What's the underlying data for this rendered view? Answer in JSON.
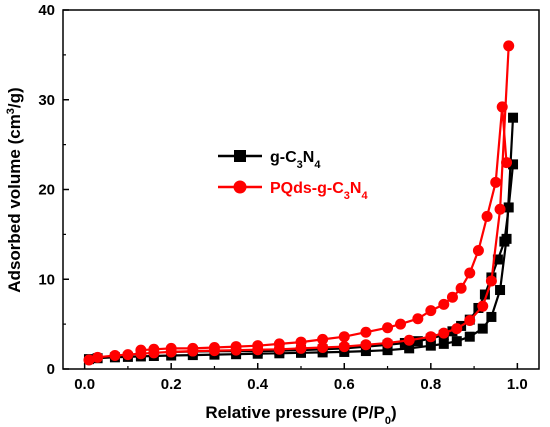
{
  "chart_data": {
    "type": "line",
    "title": "",
    "xlabel": "Relative pressure (P/P0)",
    "ylabel": "Adsorbed volume (cm3/g)",
    "xlim": [
      -0.05,
      1.05
    ],
    "ylim": [
      0,
      40
    ],
    "x_ticks": [
      "0.0",
      "0.2",
      "0.4",
      "0.6",
      "0.8",
      "1.0"
    ],
    "y_ticks": [
      "0",
      "10",
      "20",
      "30",
      "40"
    ],
    "x_tick_values": [
      0,
      0.2,
      0.4,
      0.6,
      0.8,
      1.0
    ],
    "y_tick_values": [
      0,
      10,
      20,
      30,
      40
    ],
    "grid": false,
    "legend_position": "center-left",
    "series": [
      {
        "name": "g-C3N4",
        "color": "#000000",
        "marker": "square",
        "adsorption": {
          "x": [
            0.01,
            0.03,
            0.07,
            0.1,
            0.13,
            0.16,
            0.2,
            0.25,
            0.3,
            0.35,
            0.4,
            0.45,
            0.5,
            0.55,
            0.6,
            0.65,
            0.7,
            0.75,
            0.8,
            0.83,
            0.86,
            0.89,
            0.92,
            0.94,
            0.96,
            0.975,
            0.99
          ],
          "y": [
            1.1,
            1.2,
            1.3,
            1.35,
            1.4,
            1.45,
            1.5,
            1.55,
            1.6,
            1.65,
            1.7,
            1.75,
            1.8,
            1.85,
            1.9,
            2.0,
            2.1,
            2.3,
            2.6,
            2.8,
            3.1,
            3.6,
            4.5,
            5.8,
            8.8,
            14.5,
            28.0
          ]
        },
        "desorption": {
          "x": [
            0.99,
            0.98,
            0.97,
            0.955,
            0.94,
            0.925,
            0.91,
            0.89,
            0.87,
            0.85,
            0.83,
            0.8,
            0.77,
            0.74,
            0.7,
            0.65,
            0.6,
            0.55,
            0.5,
            0.45,
            0.4,
            0.35,
            0.3,
            0.25,
            0.2
          ],
          "y": [
            22.8,
            18.0,
            14.2,
            12.2,
            10.2,
            8.3,
            6.8,
            5.5,
            4.8,
            4.2,
            3.8,
            3.4,
            3.1,
            2.9,
            2.7,
            2.5,
            2.3,
            2.2,
            2.1,
            2.05,
            2.0,
            2.0,
            2.0,
            1.95,
            1.9
          ]
        }
      },
      {
        "name": "PQds-g-C3N4",
        "color": "#ff0000",
        "marker": "circle",
        "adsorption": {
          "x": [
            0.01,
            0.03,
            0.07,
            0.1,
            0.13,
            0.16,
            0.2,
            0.25,
            0.3,
            0.35,
            0.4,
            0.45,
            0.5,
            0.55,
            0.6,
            0.65,
            0.7,
            0.75,
            0.8,
            0.83,
            0.86,
            0.89,
            0.92,
            0.94,
            0.96,
            0.98
          ],
          "y": [
            1.0,
            1.3,
            1.5,
            1.6,
            1.7,
            1.8,
            1.9,
            2.0,
            2.05,
            2.1,
            2.15,
            2.2,
            2.3,
            2.4,
            2.5,
            2.7,
            2.9,
            3.2,
            3.6,
            4.0,
            4.5,
            5.4,
            7.0,
            9.8,
            17.8,
            36.0
          ]
        },
        "desorption": {
          "x": [
            0.975,
            0.965,
            0.95,
            0.93,
            0.91,
            0.89,
            0.87,
            0.85,
            0.83,
            0.8,
            0.77,
            0.73,
            0.7,
            0.65,
            0.6,
            0.55,
            0.5,
            0.45,
            0.4,
            0.35,
            0.3,
            0.25,
            0.2,
            0.16,
            0.13
          ],
          "y": [
            23.0,
            29.2,
            20.8,
            17.0,
            13.2,
            10.7,
            9.0,
            8.0,
            7.2,
            6.5,
            5.6,
            5.0,
            4.6,
            4.1,
            3.6,
            3.3,
            3.0,
            2.8,
            2.6,
            2.5,
            2.4,
            2.3,
            2.3,
            2.2,
            2.1
          ]
        }
      }
    ]
  }
}
